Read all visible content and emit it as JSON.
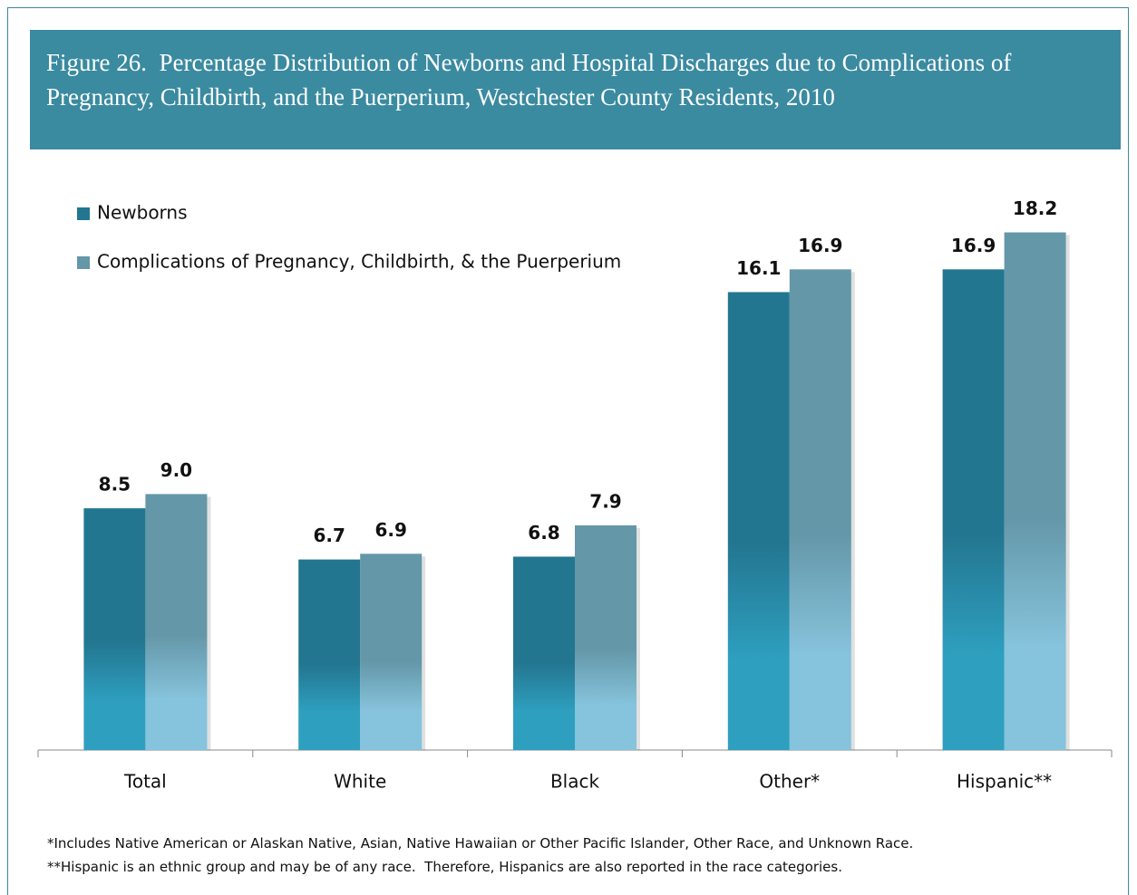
{
  "chart_data": {
    "type": "bar",
    "title": "Figure 26.  Percentage Distribution of Newborns and Hospital Discharges due to Complications of Pregnancy, Childbirth, and the Puerperium, Westchester County Residents, 2010",
    "categories": [
      "Total",
      "White",
      "Black",
      "Other*",
      "Hispanic**"
    ],
    "series": [
      {
        "name": "Newborns",
        "color": "#237690",
        "values": [
          8.5,
          6.7,
          6.8,
          16.1,
          16.9
        ],
        "value_labels": [
          "8.5",
          "6.7",
          "6.8",
          "16.1",
          "16.9"
        ]
      },
      {
        "name": "Complications of Pregnancy, Childbirth, & the Puerperium",
        "color": "#6497a8",
        "values": [
          9.0,
          6.9,
          7.9,
          16.9,
          18.2
        ],
        "value_labels": [
          "9.0",
          "6.9",
          "7.9",
          "16.9",
          "18.2"
        ]
      }
    ],
    "notes": [
      "*Includes Native American or Alaskan Native, Asian, Native Hawaiian or Other Pacific Islander, Other Race, and Unknown Race.",
      "**Hispanic is an ethnic group and may be of any race.  Therefore, Hispanics are also reported in the race categories."
    ]
  }
}
